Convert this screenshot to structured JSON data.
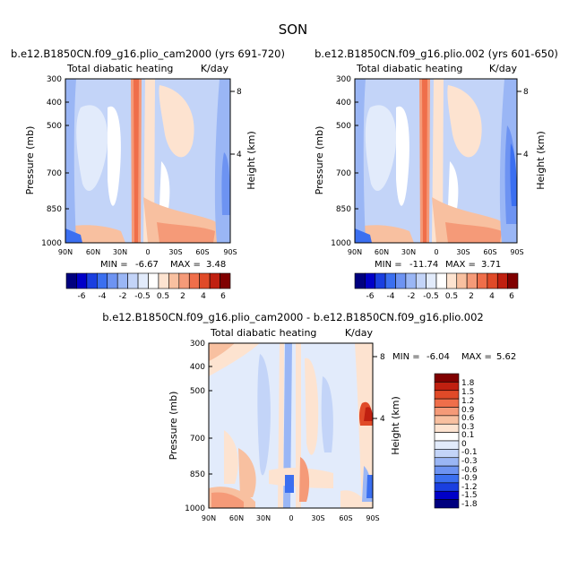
{
  "figure": {
    "title": "SON"
  },
  "chart_data": [
    {
      "type": "heatmap",
      "title": "b.e12.B1850CN.f09_g16.plio_cam2000 (yrs 691-720)",
      "subtitle_left": "Total diabatic heating",
      "subtitle_right": "K/day",
      "ylabel": "Pressure (mb)",
      "ylabel_right": "Height (km)",
      "x_ticks": [
        "90N",
        "60N",
        "30N",
        "0",
        "30S",
        "60S",
        "90S"
      ],
      "x_range": [
        90,
        -90
      ],
      "y_ticks": [
        300,
        400,
        500,
        700,
        850,
        1000
      ],
      "y_range": [
        1000,
        300
      ],
      "y_scale": "log",
      "right_ticks": [
        "8",
        "4"
      ],
      "min_label": "MIN =",
      "min": "-6.67",
      "max_label": "MAX =",
      "max": "3.48",
      "colorbar_levels": [
        "-6",
        "-4",
        "-2",
        "-0.5",
        "0.5",
        "2",
        "4",
        "6"
      ]
    },
    {
      "type": "heatmap",
      "title": "b.e12.B1850CN.f09_g16.plio.002 (yrs 601-650)",
      "subtitle_left": "Total diabatic heating",
      "subtitle_right": "K/day",
      "ylabel": "Pressure (mb)",
      "ylabel_right": "Height (km)",
      "x_ticks": [
        "90N",
        "60N",
        "30N",
        "0",
        "30S",
        "60S",
        "90S"
      ],
      "x_range": [
        90,
        -90
      ],
      "y_ticks": [
        300,
        400,
        500,
        700,
        850,
        1000
      ],
      "y_range": [
        1000,
        300
      ],
      "y_scale": "log",
      "right_ticks": [
        "8",
        "4"
      ],
      "min_label": "MIN =",
      "min": "-11.74",
      "max_label": "MAX =",
      "max": "3.71",
      "colorbar_levels": [
        "-6",
        "-4",
        "-2",
        "-0.5",
        "0.5",
        "2",
        "4",
        "6"
      ]
    },
    {
      "type": "heatmap",
      "title": "b.e12.B1850CN.f09_g16.plio_cam2000 - b.e12.B1850CN.f09_g16.plio.002",
      "subtitle_left": "Total diabatic heating",
      "subtitle_right": "K/day",
      "ylabel": "Pressure (mb)",
      "ylabel_right": "Height (km)",
      "x_ticks": [
        "90N",
        "60N",
        "30N",
        "0",
        "30S",
        "60S",
        "90S"
      ],
      "x_range": [
        90,
        -90
      ],
      "y_ticks": [
        300,
        400,
        500,
        700,
        850,
        1000
      ],
      "y_range": [
        1000,
        300
      ],
      "y_scale": "log",
      "right_ticks": [
        "8",
        "4"
      ],
      "min_label": "MIN =",
      "min": "-6.04",
      "max_label": "MAX =",
      "max": "5.62",
      "colorbar_levels": [
        "1.8",
        "1.5",
        "1.2",
        "0.9",
        "0.6",
        "0.3",
        "0.1",
        "0",
        "-0.1",
        "-0.3",
        "-0.6",
        "-0.9",
        "-1.2",
        "-1.5",
        "-1.8"
      ]
    }
  ],
  "colors": {
    "palette": [
      "#00007f",
      "#0000c8",
      "#1a3fe0",
      "#3b6ff0",
      "#6d93f2",
      "#9ab6f5",
      "#c3d4f8",
      "#e2ebfb",
      "#ffffff",
      "#fde3d0",
      "#f8c0a0",
      "#f59a78",
      "#ef6e4a",
      "#e04a28",
      "#c02010",
      "#800000"
    ]
  }
}
